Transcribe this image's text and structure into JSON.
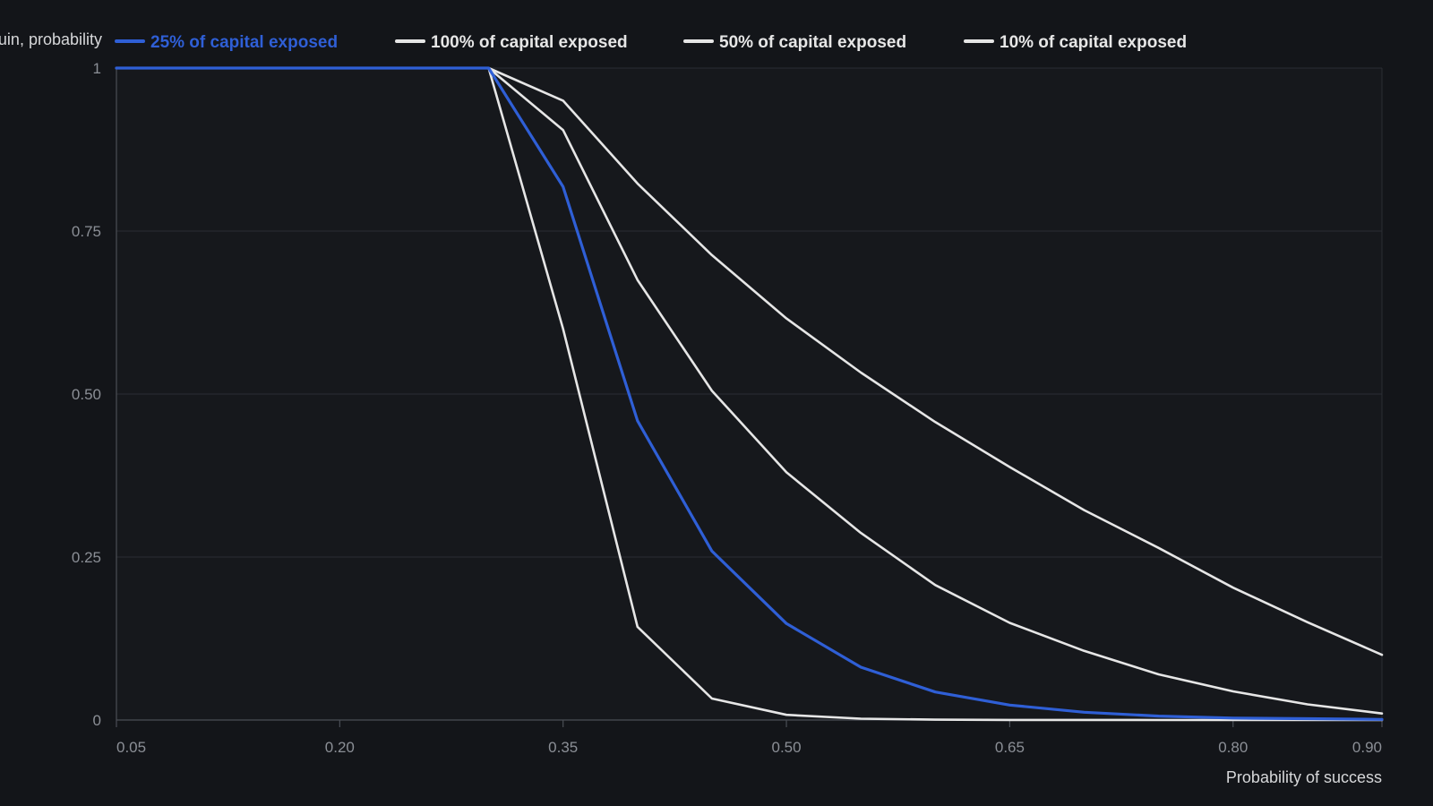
{
  "chart_data": {
    "type": "line",
    "ylabel": "Ruin, probability",
    "xlabel": "Probability of success",
    "xlim": [
      0.05,
      0.9
    ],
    "ylim": [
      0,
      1
    ],
    "x_ticks": [
      "0.05",
      "0.20",
      "0.35",
      "0.50",
      "0.65",
      "0.80",
      "0.90"
    ],
    "y_ticks": [
      "0",
      "0.25",
      "0.50",
      "0.75",
      "1"
    ],
    "grid": true,
    "legend_position": "top",
    "x": [
      0.05,
      0.1,
      0.15,
      0.2,
      0.25,
      0.3,
      0.35,
      0.4,
      0.45,
      0.5,
      0.55,
      0.6,
      0.65,
      0.7,
      0.75,
      0.8,
      0.85,
      0.9
    ],
    "series": [
      {
        "name": "25% of capital exposed",
        "color": "#2f5fd6",
        "values": [
          1,
          1,
          1,
          1,
          1,
          1,
          0.818,
          0.459,
          0.259,
          0.148,
          0.081,
          0.043,
          0.023,
          0.012,
          0.006,
          0.003,
          0.002,
          0.001
        ]
      },
      {
        "name": "100% of capital exposed",
        "color": "#e6e6e6",
        "values": [
          1,
          1,
          1,
          1,
          1,
          1,
          0.6,
          0.143,
          0.033,
          0.008,
          0.002,
          0.0005,
          0.0002,
          0.0001,
          0,
          0,
          0,
          0
        ]
      },
      {
        "name": "50% of capital exposed",
        "color": "#e6e6e6",
        "values": [
          1,
          1,
          1,
          1,
          1,
          1,
          0.905,
          0.675,
          0.505,
          0.38,
          0.287,
          0.207,
          0.149,
          0.106,
          0.07,
          0.044,
          0.024,
          0.01
        ]
      },
      {
        "name": "10% of capital exposed",
        "color": "#e6e6e6",
        "values": [
          1,
          1,
          1,
          1,
          1,
          1,
          0.95,
          0.823,
          0.713,
          0.616,
          0.533,
          0.457,
          0.388,
          0.322,
          0.264,
          0.203,
          0.15,
          0.1
        ]
      }
    ]
  }
}
